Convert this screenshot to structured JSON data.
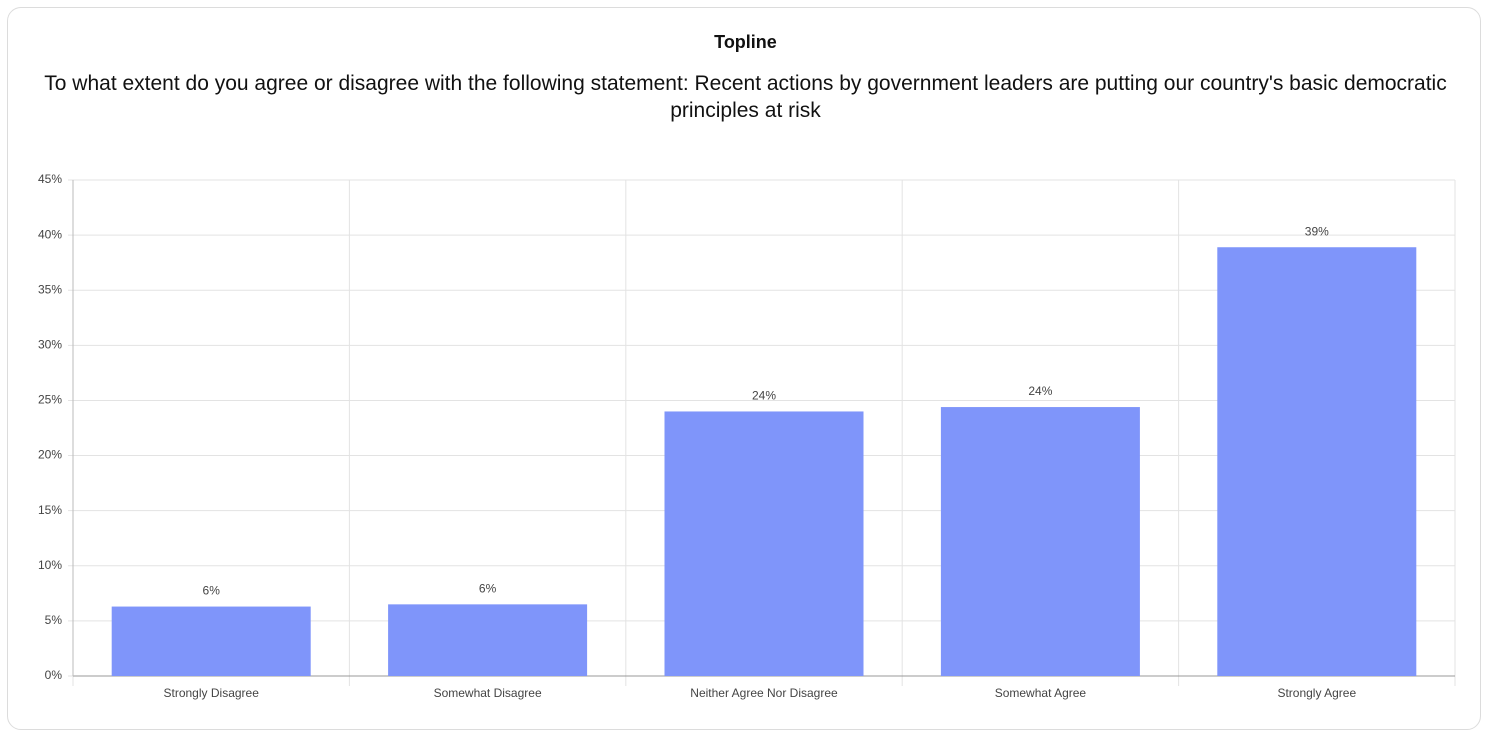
{
  "chart_data": {
    "type": "bar",
    "title": "Topline",
    "subtitle": "To what extent do you agree or disagree with the following statement: Recent actions by government leaders are putting our country's basic democratic principles at risk",
    "categories": [
      "Strongly Disagree",
      "Somewhat Disagree",
      "Neither Agree Nor Disagree",
      "Somewhat Agree",
      "Strongly Agree"
    ],
    "values": [
      6.3,
      6.5,
      24.0,
      24.4,
      38.9
    ],
    "value_labels": [
      "6%",
      "6%",
      "24%",
      "24%",
      "39%"
    ],
    "color": "#7f95fa",
    "ylim": [
      0,
      45
    ],
    "yticks": [
      {
        "value": 0,
        "label": "0%"
      },
      {
        "value": 5,
        "label": "5%"
      },
      {
        "value": 10,
        "label": "10%"
      },
      {
        "value": 15,
        "label": "15%"
      },
      {
        "value": 20,
        "label": "20%"
      },
      {
        "value": 25,
        "label": "25%"
      },
      {
        "value": 30,
        "label": "30%"
      },
      {
        "value": 35,
        "label": "35%"
      },
      {
        "value": 40,
        "label": "40%"
      },
      {
        "value": 45,
        "label": "45%"
      }
    ],
    "grid": true
  }
}
